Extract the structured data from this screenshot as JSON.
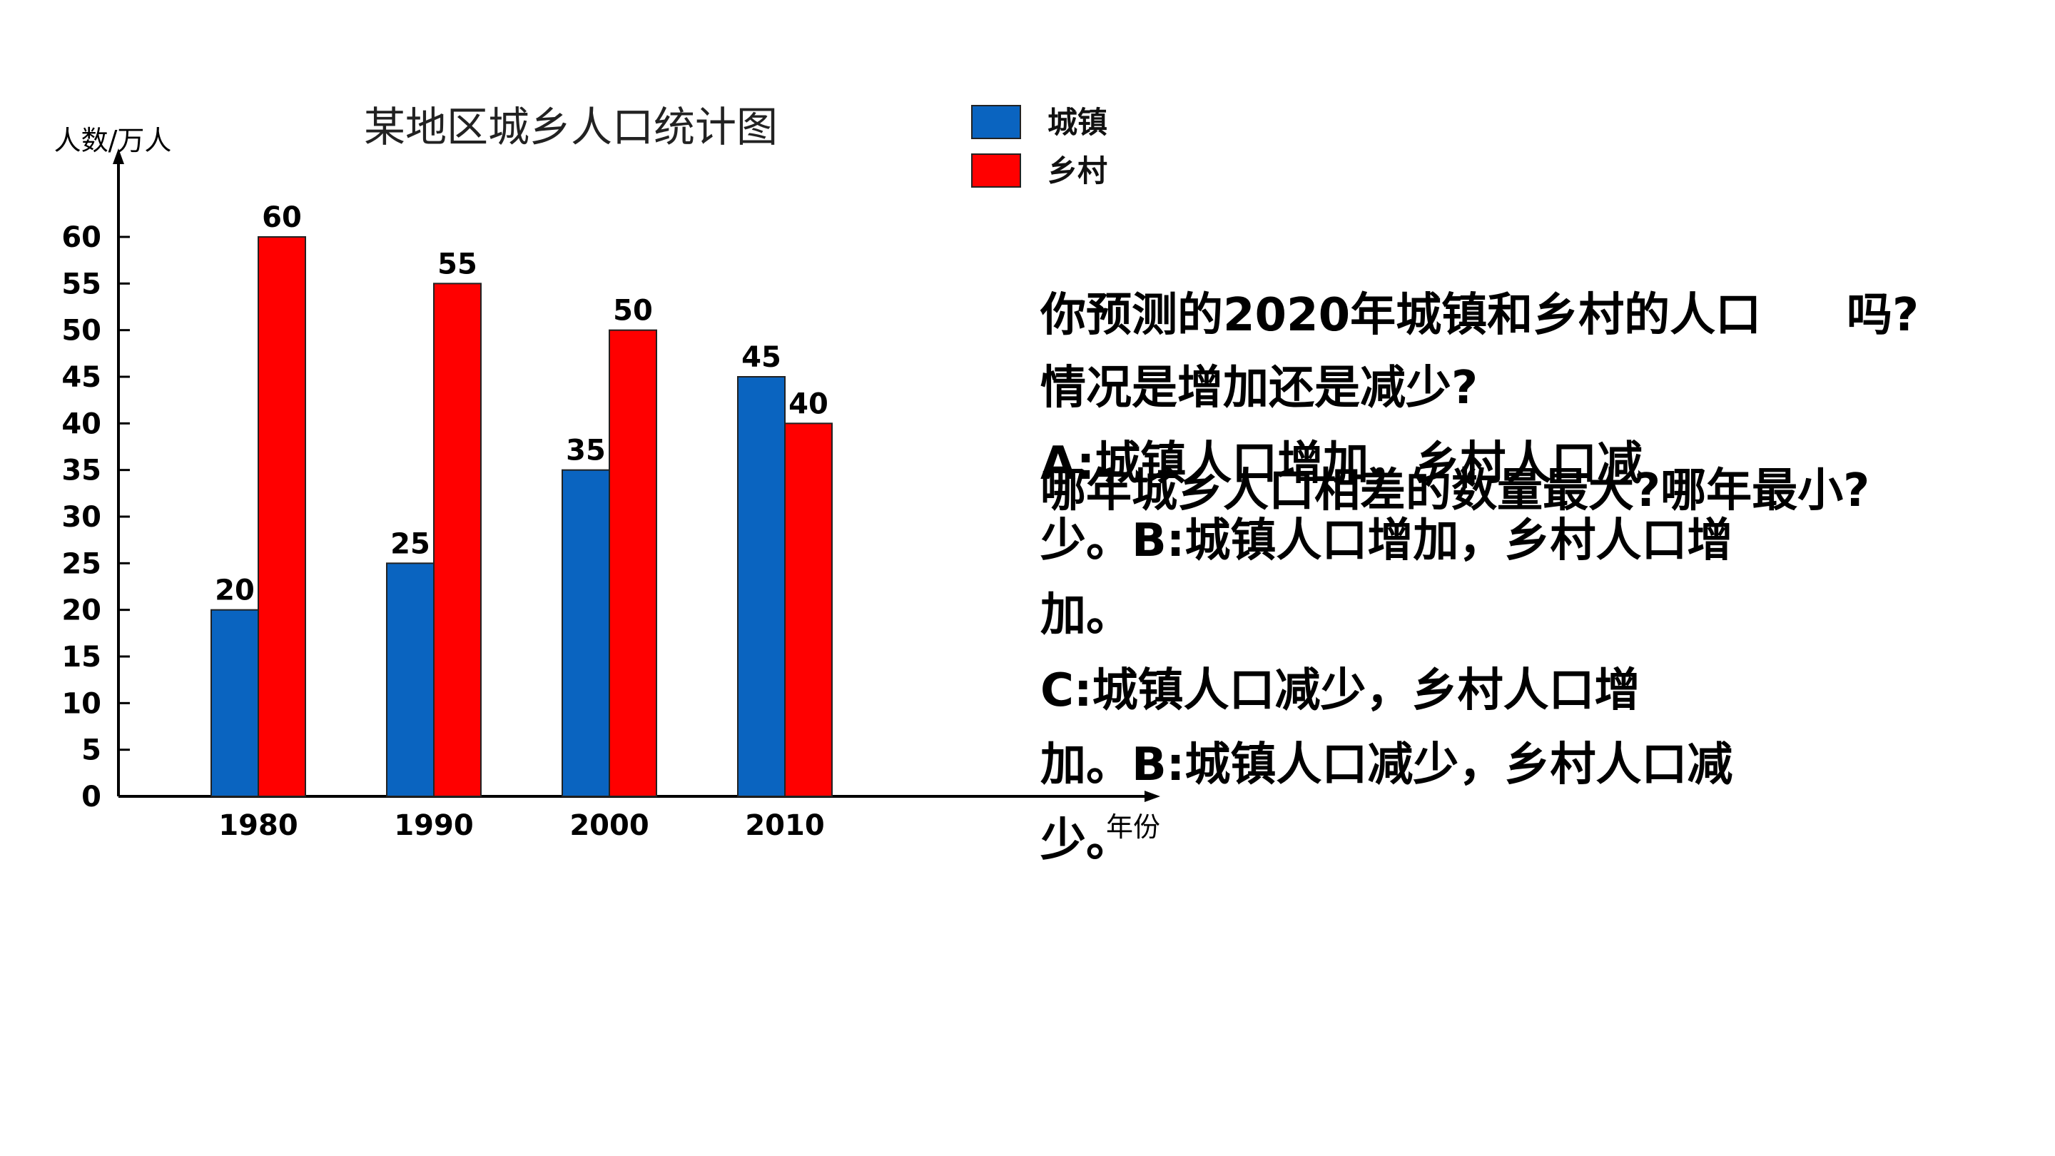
{
  "chart_data": {
    "type": "bar",
    "title": "某地区城乡人口统计图",
    "ylabel": "人数/万人",
    "xlabel": "年份",
    "categories": [
      "1980",
      "1990",
      "2000",
      "2010"
    ],
    "series": [
      {
        "name": "城镇",
        "color": "#0a64c0",
        "values": [
          20,
          25,
          35,
          45
        ]
      },
      {
        "name": "乡村",
        "color": "#ff0000",
        "values": [
          60,
          55,
          50,
          40
        ]
      }
    ],
    "ylim": [
      0,
      60
    ],
    "yticks": [
      0,
      5,
      10,
      15,
      20,
      25,
      30,
      35,
      40,
      45,
      50,
      55,
      60
    ],
    "legend_position": "top-right",
    "grid": false
  },
  "questions": {
    "line_1": "你预测的2020年城镇和乡村的人口",
    "line_1_tail": "吗?",
    "line_2": "情况是增加还是减少?",
    "overlay_question": "哪年城乡人口相差的数量最大?哪年最小?",
    "option_a": "A:城镇人口增加，乡村人口减",
    "option_a_cont": "少。B:城镇人口增加，乡村人口增",
    "option_b_cont": "加。",
    "option_c": "C:城镇人口减少，乡村人口增",
    "option_c_cont": "加。B:城镇人口减少，乡村人口减",
    "option_d_cont": "少。"
  }
}
